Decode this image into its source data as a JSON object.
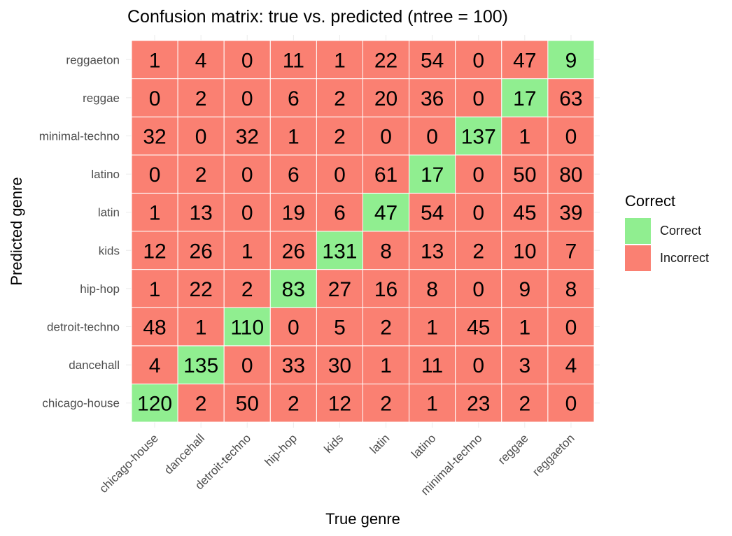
{
  "chart_data": {
    "type": "heatmap",
    "title": "Confusion matrix: true vs. predicted (ntree = 100)",
    "xlabel": "True genre",
    "ylabel": "Predicted genre",
    "x_categories": [
      "chicago-house",
      "dancehall",
      "detroit-techno",
      "hip-hop",
      "kids",
      "latin",
      "latino",
      "minimal-techno",
      "reggae",
      "reggaeton"
    ],
    "y_categories": [
      "chicago-house",
      "dancehall",
      "detroit-techno",
      "hip-hop",
      "kids",
      "latin",
      "latino",
      "minimal-techno",
      "reggae",
      "reggaeton"
    ],
    "matrix": [
      [
        120,
        2,
        50,
        2,
        12,
        2,
        1,
        23,
        2,
        0
      ],
      [
        4,
        135,
        0,
        33,
        30,
        1,
        11,
        0,
        3,
        4
      ],
      [
        48,
        1,
        110,
        0,
        5,
        2,
        1,
        45,
        1,
        0
      ],
      [
        1,
        22,
        2,
        83,
        27,
        16,
        8,
        0,
        9,
        8
      ],
      [
        12,
        26,
        1,
        26,
        131,
        8,
        13,
        2,
        10,
        7
      ],
      [
        1,
        13,
        0,
        19,
        6,
        47,
        54,
        0,
        45,
        39
      ],
      [
        0,
        2,
        0,
        6,
        0,
        61,
        17,
        0,
        50,
        80
      ],
      [
        32,
        0,
        32,
        1,
        2,
        0,
        0,
        137,
        1,
        0
      ],
      [
        0,
        2,
        0,
        6,
        2,
        20,
        36,
        0,
        17,
        63
      ],
      [
        1,
        4,
        0,
        11,
        1,
        22,
        54,
        0,
        47,
        9
      ]
    ],
    "matrix_orientation": "rows = predicted genre (y_categories order), columns = true genre (x_categories order)",
    "fill_rule": "Correct when true genre equals predicted genre",
    "grid": true,
    "legend": {
      "title": "Correct",
      "position": "right",
      "entries": [
        {
          "label": "Correct",
          "color": "#90EE90"
        },
        {
          "label": "Incorrect",
          "color": "#FA8072"
        }
      ]
    }
  }
}
